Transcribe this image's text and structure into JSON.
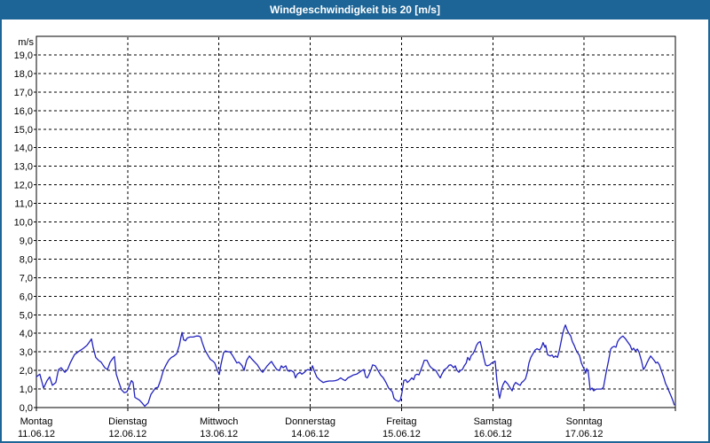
{
  "window": {
    "title": "Windgeschwindigkeit bis 20 [m/s]"
  },
  "colors": {
    "titlebar": "#1D6596",
    "frame": "#1D6596",
    "line": "#2222BE",
    "grid": "#000000",
    "plot_background": "#FFFFFF",
    "text": "#000000"
  },
  "chart_data": {
    "type": "line",
    "title": "Windgeschwindigkeit bis 20 [m/s]",
    "ylabel": "m/s",
    "ylim": [
      0,
      20
    ],
    "xlim": [
      0,
      168
    ],
    "x_unit": "hours since Montag 11.06.12 00:00",
    "grid": "dashed",
    "legend": "none",
    "yticks": [
      [
        0,
        "0,0"
      ],
      [
        1,
        "1,0"
      ],
      [
        2,
        "2,0"
      ],
      [
        3,
        "3,0"
      ],
      [
        4,
        "4,0"
      ],
      [
        5,
        "5,0"
      ],
      [
        6,
        "6,0"
      ],
      [
        7,
        "7,0"
      ],
      [
        8,
        "8,0"
      ],
      [
        9,
        "9,0"
      ],
      [
        10,
        "10,0"
      ],
      [
        11,
        "11,0"
      ],
      [
        12,
        "12,0"
      ],
      [
        13,
        "13,0"
      ],
      [
        14,
        "14,0"
      ],
      [
        15,
        "15,0"
      ],
      [
        16,
        "16,0"
      ],
      [
        17,
        "17,0"
      ],
      [
        18,
        "18,0"
      ],
      [
        19,
        "19,0"
      ]
    ],
    "days": [
      {
        "name": "Montag",
        "date": "11.06.12"
      },
      {
        "name": "Dienstag",
        "date": "12.06.12"
      },
      {
        "name": "Mittwoch",
        "date": "13.06.12"
      },
      {
        "name": "Donnerstag",
        "date": "14.06.12"
      },
      {
        "name": "Freitag",
        "date": "15.06.12"
      },
      {
        "name": "Samstag",
        "date": "16.06.12"
      },
      {
        "name": "Sonntag",
        "date": "17.06.12"
      }
    ],
    "series": [
      {
        "name": "Windgeschwindigkeit",
        "points": [
          [
            0.0,
            1.65
          ],
          [
            0.9,
            1.8
          ],
          [
            1.9,
            1.05
          ],
          [
            2.8,
            1.45
          ],
          [
            3.5,
            1.65
          ],
          [
            4.2,
            1.2
          ],
          [
            5.1,
            1.35
          ],
          [
            5.8,
            2.05
          ],
          [
            6.5,
            2.15
          ],
          [
            7.5,
            1.9
          ],
          [
            8.2,
            2.05
          ],
          [
            8.9,
            2.4
          ],
          [
            10.0,
            2.85
          ],
          [
            11.0,
            3.0
          ],
          [
            11.7,
            3.1
          ],
          [
            12.4,
            3.2
          ],
          [
            13.3,
            3.35
          ],
          [
            14.0,
            3.55
          ],
          [
            14.5,
            3.7
          ],
          [
            14.9,
            3.25
          ],
          [
            15.6,
            2.7
          ],
          [
            16.3,
            2.55
          ],
          [
            17.0,
            2.45
          ],
          [
            18.0,
            2.15
          ],
          [
            18.7,
            2.05
          ],
          [
            19.4,
            2.45
          ],
          [
            20.1,
            2.65
          ],
          [
            20.5,
            2.75
          ],
          [
            21.0,
            1.8
          ],
          [
            21.7,
            1.35
          ],
          [
            22.4,
            0.95
          ],
          [
            23.1,
            0.8
          ],
          [
            23.8,
            0.85
          ],
          [
            25.0,
            1.45
          ],
          [
            25.4,
            1.35
          ],
          [
            25.9,
            0.55
          ],
          [
            27.1,
            0.4
          ],
          [
            27.8,
            0.25
          ],
          [
            28.5,
            0.07
          ],
          [
            29.4,
            0.25
          ],
          [
            30.1,
            0.7
          ],
          [
            31.3,
            1.05
          ],
          [
            32.0,
            1.1
          ],
          [
            32.7,
            1.5
          ],
          [
            33.4,
            2.0
          ],
          [
            34.1,
            2.3
          ],
          [
            34.8,
            2.55
          ],
          [
            35.5,
            2.7
          ],
          [
            36.2,
            2.78
          ],
          [
            36.9,
            2.9
          ],
          [
            37.6,
            3.35
          ],
          [
            38.0,
            3.8
          ],
          [
            38.3,
            4.05
          ],
          [
            38.7,
            3.65
          ],
          [
            39.2,
            3.6
          ],
          [
            39.7,
            3.75
          ],
          [
            40.4,
            3.8
          ],
          [
            41.3,
            3.8
          ],
          [
            42.0,
            3.85
          ],
          [
            42.7,
            3.85
          ],
          [
            43.2,
            3.8
          ],
          [
            43.6,
            3.5
          ],
          [
            44.3,
            3.1
          ],
          [
            45.0,
            2.85
          ],
          [
            45.7,
            2.6
          ],
          [
            46.4,
            2.5
          ],
          [
            46.9,
            2.4
          ],
          [
            47.6,
            2.0
          ],
          [
            48.1,
            1.78
          ],
          [
            48.5,
            2.3
          ],
          [
            49.2,
            2.95
          ],
          [
            49.7,
            3.05
          ],
          [
            50.4,
            3.0
          ],
          [
            50.9,
            3.0
          ],
          [
            51.6,
            2.8
          ],
          [
            52.3,
            2.55
          ],
          [
            52.7,
            2.4
          ],
          [
            53.2,
            2.45
          ],
          [
            53.7,
            2.35
          ],
          [
            54.1,
            2.25
          ],
          [
            54.6,
            2.0
          ],
          [
            55.3,
            2.55
          ],
          [
            56.0,
            2.78
          ],
          [
            56.7,
            2.6
          ],
          [
            57.4,
            2.45
          ],
          [
            58.1,
            2.3
          ],
          [
            59.0,
            2.0
          ],
          [
            59.5,
            1.9
          ],
          [
            60.0,
            2.05
          ],
          [
            60.7,
            2.25
          ],
          [
            61.4,
            2.4
          ],
          [
            61.8,
            2.48
          ],
          [
            62.5,
            2.25
          ],
          [
            63.2,
            2.05
          ],
          [
            63.9,
            2.0
          ],
          [
            64.4,
            2.25
          ],
          [
            64.9,
            2.15
          ],
          [
            65.6,
            2.25
          ],
          [
            66.0,
            2.0
          ],
          [
            66.5,
            1.95
          ],
          [
            67.0,
            2.0
          ],
          [
            67.7,
            1.9
          ],
          [
            68.1,
            1.6
          ],
          [
            68.6,
            1.8
          ],
          [
            69.3,
            1.9
          ],
          [
            69.8,
            1.8
          ],
          [
            70.5,
            1.9
          ],
          [
            70.9,
            2.0
          ],
          [
            71.4,
            2.05
          ],
          [
            72.1,
            2.0
          ],
          [
            72.6,
            2.25
          ],
          [
            73.0,
            2.0
          ],
          [
            73.7,
            1.65
          ],
          [
            74.4,
            1.5
          ],
          [
            75.4,
            1.35
          ],
          [
            76.1,
            1.4
          ],
          [
            77.0,
            1.43
          ],
          [
            77.9,
            1.43
          ],
          [
            78.6,
            1.45
          ],
          [
            79.3,
            1.5
          ],
          [
            80.0,
            1.6
          ],
          [
            80.7,
            1.5
          ],
          [
            81.2,
            1.45
          ],
          [
            81.9,
            1.6
          ],
          [
            82.6,
            1.67
          ],
          [
            83.3,
            1.75
          ],
          [
            84.2,
            1.8
          ],
          [
            84.9,
            1.9
          ],
          [
            85.6,
            2.0
          ],
          [
            86.1,
            2.05
          ],
          [
            86.6,
            1.65
          ],
          [
            87.0,
            1.6
          ],
          [
            87.5,
            1.8
          ],
          [
            88.0,
            2.05
          ],
          [
            88.4,
            2.3
          ],
          [
            89.1,
            2.25
          ],
          [
            89.8,
            2.0
          ],
          [
            90.5,
            1.75
          ],
          [
            91.2,
            1.6
          ],
          [
            91.9,
            1.35
          ],
          [
            92.6,
            1.05
          ],
          [
            93.1,
            0.95
          ],
          [
            93.6,
            0.85
          ],
          [
            94.0,
            0.5
          ],
          [
            94.5,
            0.4
          ],
          [
            95.2,
            0.33
          ],
          [
            95.7,
            0.4
          ],
          [
            96.1,
            0.8
          ],
          [
            96.6,
            1.45
          ],
          [
            97.1,
            1.5
          ],
          [
            97.5,
            1.35
          ],
          [
            98.0,
            1.43
          ],
          [
            98.7,
            1.6
          ],
          [
            99.2,
            1.5
          ],
          [
            99.6,
            1.75
          ],
          [
            100.1,
            1.8
          ],
          [
            100.6,
            1.76
          ],
          [
            101.0,
            2.0
          ],
          [
            101.5,
            2.25
          ],
          [
            102.0,
            2.55
          ],
          [
            102.7,
            2.55
          ],
          [
            103.4,
            2.25
          ],
          [
            103.8,
            2.15
          ],
          [
            104.5,
            2.05
          ],
          [
            105.0,
            2.0
          ],
          [
            105.7,
            1.75
          ],
          [
            106.2,
            1.6
          ],
          [
            106.6,
            1.8
          ],
          [
            107.3,
            2.05
          ],
          [
            108.0,
            2.15
          ],
          [
            108.5,
            2.28
          ],
          [
            109.0,
            2.3
          ],
          [
            109.7,
            2.15
          ],
          [
            110.1,
            2.25
          ],
          [
            110.6,
            2.0
          ],
          [
            111.1,
            1.9
          ],
          [
            111.5,
            2.0
          ],
          [
            112.0,
            2.05
          ],
          [
            112.5,
            2.25
          ],
          [
            113.0,
            2.4
          ],
          [
            113.4,
            2.7
          ],
          [
            113.9,
            2.55
          ],
          [
            114.3,
            2.8
          ],
          [
            114.8,
            2.9
          ],
          [
            115.3,
            3.1
          ],
          [
            115.7,
            3.35
          ],
          [
            116.2,
            3.5
          ],
          [
            116.7,
            3.55
          ],
          [
            117.1,
            3.2
          ],
          [
            117.6,
            2.7
          ],
          [
            118.1,
            2.3
          ],
          [
            118.5,
            2.25
          ],
          [
            119.2,
            2.3
          ],
          [
            119.7,
            2.4
          ],
          [
            120.2,
            2.45
          ],
          [
            120.6,
            2.5
          ],
          [
            121.1,
            1.4
          ],
          [
            121.6,
            0.7
          ],
          [
            121.8,
            0.5
          ],
          [
            122.3,
            1.0
          ],
          [
            122.7,
            1.25
          ],
          [
            123.2,
            1.43
          ],
          [
            123.9,
            1.28
          ],
          [
            124.6,
            1.05
          ],
          [
            125.1,
            0.9
          ],
          [
            125.5,
            1.2
          ],
          [
            126.0,
            1.35
          ],
          [
            126.7,
            1.25
          ],
          [
            127.2,
            1.2
          ],
          [
            127.6,
            1.35
          ],
          [
            128.1,
            1.43
          ],
          [
            128.6,
            1.55
          ],
          [
            129.0,
            1.85
          ],
          [
            129.5,
            2.4
          ],
          [
            130.0,
            2.7
          ],
          [
            130.4,
            2.85
          ],
          [
            131.1,
            3.1
          ],
          [
            131.6,
            3.17
          ],
          [
            132.3,
            3.1
          ],
          [
            132.8,
            3.25
          ],
          [
            133.2,
            3.5
          ],
          [
            133.7,
            3.25
          ],
          [
            133.9,
            3.35
          ],
          [
            134.4,
            2.85
          ],
          [
            135.1,
            2.78
          ],
          [
            135.6,
            2.83
          ],
          [
            136.0,
            2.7
          ],
          [
            136.5,
            2.78
          ],
          [
            137.0,
            2.7
          ],
          [
            137.4,
            3.0
          ],
          [
            137.9,
            3.5
          ],
          [
            138.4,
            4.0
          ],
          [
            138.8,
            4.3
          ],
          [
            139.1,
            4.45
          ],
          [
            139.5,
            4.2
          ],
          [
            140.0,
            4.0
          ],
          [
            140.5,
            3.85
          ],
          [
            140.9,
            3.55
          ],
          [
            141.4,
            3.35
          ],
          [
            141.9,
            3.1
          ],
          [
            142.3,
            2.95
          ],
          [
            142.8,
            2.8
          ],
          [
            143.3,
            2.4
          ],
          [
            143.7,
            2.2
          ],
          [
            144.2,
            2.0
          ],
          [
            144.4,
            1.85
          ],
          [
            144.7,
            2.1
          ],
          [
            145.1,
            1.9
          ],
          [
            145.6,
            0.95
          ],
          [
            146.1,
            1.05
          ],
          [
            146.5,
            0.9
          ],
          [
            147.2,
            1.0
          ],
          [
            147.9,
            1.0
          ],
          [
            148.6,
            1.0
          ],
          [
            149.1,
            1.1
          ],
          [
            149.8,
            1.9
          ],
          [
            150.5,
            2.6
          ],
          [
            151.0,
            3.15
          ],
          [
            151.4,
            3.25
          ],
          [
            151.9,
            3.3
          ],
          [
            152.4,
            3.25
          ],
          [
            152.8,
            3.55
          ],
          [
            153.3,
            3.7
          ],
          [
            153.8,
            3.8
          ],
          [
            154.2,
            3.85
          ],
          [
            154.9,
            3.7
          ],
          [
            155.4,
            3.55
          ],
          [
            156.1,
            3.35
          ],
          [
            156.6,
            3.1
          ],
          [
            157.0,
            3.2
          ],
          [
            157.5,
            3.05
          ],
          [
            158.0,
            3.15
          ],
          [
            158.4,
            3.0
          ],
          [
            159.1,
            2.5
          ],
          [
            159.6,
            2.05
          ],
          [
            160.1,
            2.2
          ],
          [
            160.5,
            2.4
          ],
          [
            161.0,
            2.6
          ],
          [
            161.5,
            2.78
          ],
          [
            162.0,
            2.65
          ],
          [
            162.4,
            2.55
          ],
          [
            162.9,
            2.4
          ],
          [
            163.3,
            2.45
          ],
          [
            163.8,
            2.3
          ],
          [
            164.3,
            2.0
          ],
          [
            165.0,
            1.6
          ],
          [
            165.4,
            1.3
          ],
          [
            165.9,
            1.1
          ],
          [
            166.4,
            0.85
          ],
          [
            166.8,
            0.65
          ],
          [
            167.3,
            0.4
          ],
          [
            167.7,
            0.15
          ]
        ]
      }
    ]
  }
}
